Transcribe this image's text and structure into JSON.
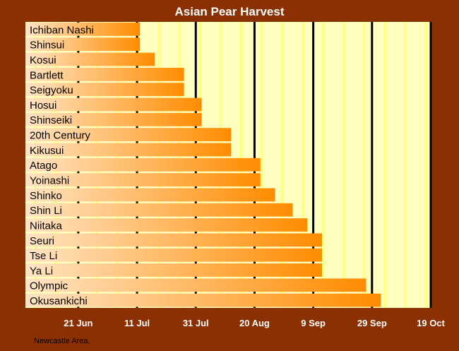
{
  "chart_data": {
    "type": "bar",
    "orientation": "horizontal",
    "title": "Asian Pear Harvest",
    "footnote": "Newcastle Area.",
    "x_axis_ticks": [
      "21 Jun",
      "11 Jul",
      "31 Jul",
      "20 Aug",
      "9 Sep",
      "29 Sep",
      "19 Oct"
    ],
    "xlim": [
      "2023-06-03",
      "2023-10-19"
    ],
    "categories": [
      "Ichiban Nashi",
      "Shinsui",
      "Kosui",
      "Bartlett",
      "Seigyoku",
      "Hosui",
      "Shinseiki",
      "20th Century",
      "Kikusui",
      "Atago",
      "Yoinashi",
      "Shinko",
      "Shin Li",
      "Niitaka",
      "Seuri",
      "Tse Li",
      "Ya Li",
      "Olympic",
      "Okusankichi"
    ],
    "values": [
      "2023-07-12",
      "2023-07-12",
      "2023-07-17",
      "2023-07-27",
      "2023-07-27",
      "2023-08-02",
      "2023-08-02",
      "2023-08-12",
      "2023-08-12",
      "2023-08-22",
      "2023-08-22",
      "2023-08-27",
      "2023-09-02",
      "2023-09-07",
      "2023-09-12",
      "2023-09-12",
      "2023-09-12",
      "2023-09-27",
      "2023-10-02"
    ],
    "grid": true,
    "colors": {
      "background": "#8B3000",
      "plot_bg": "#FFFFC0",
      "stripe": "#FFFF80",
      "bar_start": "#FFE4C4",
      "bar_end": "#FF8C00",
      "text_light": "#FFFFFF",
      "text_dark": "#000000"
    }
  }
}
